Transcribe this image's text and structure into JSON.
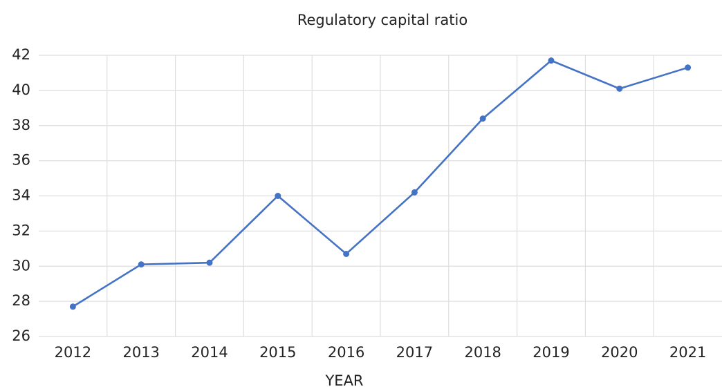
{
  "chart_data": {
    "type": "line",
    "title": "Regulatory capital ratio",
    "x_label": "YEAR",
    "categories": [
      "2012",
      "2013",
      "2014",
      "2015",
      "2016",
      "2017",
      "2018",
      "2019",
      "2020",
      "2021"
    ],
    "series": [
      {
        "name": "Regulatory capital ratio",
        "color": "#4472c4",
        "values": [
          27.7,
          30.1,
          30.2,
          34.0,
          30.7,
          34.2,
          38.4,
          41.7,
          40.1,
          41.3
        ]
      }
    ],
    "ylim": [
      26,
      42
    ],
    "yticks": [
      26,
      28,
      30,
      32,
      34,
      36,
      38,
      40,
      42
    ],
    "grid": true
  }
}
